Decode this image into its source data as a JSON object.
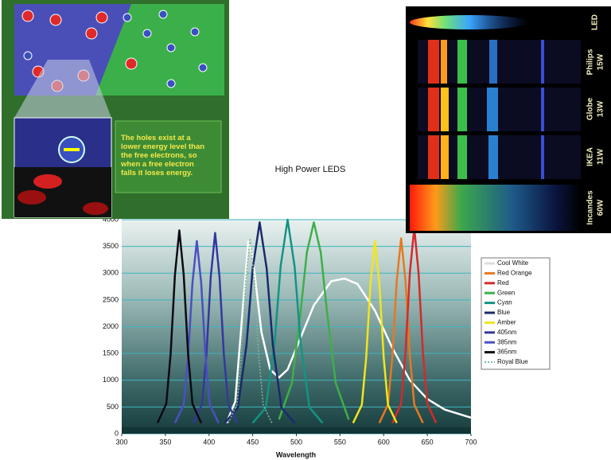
{
  "chart_data": {
    "type": "line",
    "title": "High Power LEDS",
    "x_label": "Wavelength",
    "xlim": [
      300,
      700
    ],
    "xticks": [
      300,
      350,
      400,
      450,
      500,
      550,
      600,
      650,
      700
    ],
    "ylim": [
      0,
      4000
    ],
    "yticks": [
      0,
      500,
      1000,
      1500,
      2000,
      2500,
      3000,
      3500,
      4000
    ],
    "grid": true,
    "legend": "right",
    "series": [
      {
        "name": "Cool White",
        "color": "#ffffff",
        "x": [
          420,
          430,
          440,
          445,
          450,
          460,
          470,
          480,
          490,
          500,
          520,
          540,
          555,
          570,
          590,
          610,
          630,
          650,
          670,
          700
        ],
        "values": [
          200,
          600,
          2600,
          3600,
          3300,
          1900,
          1200,
          1050,
          1200,
          1600,
          2400,
          2850,
          2900,
          2800,
          2300,
          1600,
          1000,
          650,
          450,
          300
        ]
      },
      {
        "name": "Red Orange",
        "color": "#e8781e",
        "x": [
          595,
          605,
          610,
          615,
          620,
          625,
          630,
          635,
          645
        ],
        "values": [
          200,
          545,
          1442,
          2857,
          3650,
          2857,
          1442,
          545,
          200
        ]
      },
      {
        "name": "Red",
        "color": "#d42a2a",
        "x": [
          610,
          620,
          625,
          630,
          635,
          640,
          645,
          650,
          660
        ],
        "values": [
          200,
          565,
          1514,
          3011,
          3850,
          3011,
          1514,
          565,
          200
        ]
      },
      {
        "name": "Green",
        "color": "#3fae49",
        "x": [
          480,
          495,
          505,
          512,
          520,
          528,
          535,
          545,
          560
        ],
        "values": [
          264,
          950,
          2300,
          3388,
          3950,
          3388,
          2300,
          950,
          264
        ]
      },
      {
        "name": "Cyan",
        "color": "#149383",
        "x": [
          450,
          465,
          475,
          482,
          490,
          498,
          505,
          515,
          530
        ],
        "values": [
          200,
          489,
          1682,
          3126,
          4000,
          3126,
          1682,
          489,
          200
        ]
      },
      {
        "name": "Blue",
        "color": "#1b2a6b",
        "x": [
          418,
          433,
          443,
          450,
          458,
          466,
          473,
          483,
          498
        ],
        "values": [
          200,
          485,
          1663,
          3088,
          3950,
          3088,
          1663,
          485,
          200
        ]
      },
      {
        "name": "Amber",
        "color": "#f2e51c",
        "x": [
          565,
          575,
          580,
          585,
          590,
          595,
          600,
          605,
          615
        ],
        "values": [
          200,
          540,
          1424,
          2818,
          3600,
          2818,
          1424,
          540,
          200
        ]
      },
      {
        "name": "405nm",
        "color": "#34389c",
        "x": [
          382,
          392,
          397,
          402,
          407,
          412,
          417,
          422,
          432
        ],
        "values": [
          200,
          555,
          1478,
          2934,
          3750,
          2934,
          1478,
          555,
          200
        ]
      },
      {
        "name": "385nm",
        "color": "#4b4fc2",
        "x": [
          361,
          371,
          376,
          381,
          386,
          391,
          396,
          401,
          411
        ],
        "values": [
          200,
          540,
          1424,
          2818,
          3600,
          2818,
          1424,
          540,
          200
        ]
      },
      {
        "name": "365nm",
        "color": "#0a0a14",
        "x": [
          341,
          351,
          356,
          361,
          366,
          371,
          376,
          381,
          391
        ],
        "values": [
          200,
          560,
          1496,
          2972,
          3800,
          2972,
          1496,
          560,
          200
        ]
      },
      {
        "name": "Royal Blue",
        "color": "#7fb59b",
        "dashed": true,
        "x": [
          422,
          432,
          437,
          442,
          447,
          452,
          457,
          462,
          472
        ],
        "values": [
          200,
          545,
          1442,
          2857,
          3650,
          2857,
          1442,
          545,
          200
        ]
      }
    ]
  },
  "images": {
    "inset": {
      "caption": [
        "The holes exist at a",
        "lower energy level than",
        "the free electrons, so",
        "when a free electron",
        "falls it loses energy."
      ]
    },
    "spectrum": {
      "labels": [
        [
          "LED"
        ],
        [
          "Philips",
          "15W"
        ],
        [
          "Globe",
          "13W"
        ],
        [
          "IKEA",
          "11W"
        ],
        [
          "Incandes",
          "60W"
        ]
      ]
    }
  }
}
